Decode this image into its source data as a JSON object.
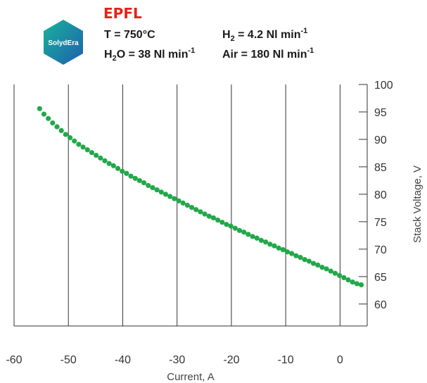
{
  "header": {
    "epfl_logo_text": "EPFL",
    "solydera_logo_text": "SolydEra",
    "conditions": {
      "temperature": "T = 750°C",
      "hydrogen": {
        "prefix": "H",
        "sub": "2",
        "rest": " = 4.2 Nl min",
        "sup": "-1"
      },
      "water": {
        "prefix": "H",
        "sub": "2",
        "rest": "O = 38 Nl min",
        "sup": "-1"
      },
      "air": {
        "prefix": "Air = 180 Nl min",
        "sup": "-1"
      }
    }
  },
  "colors": {
    "points": "#22a84a",
    "epfl_red": "#e2231a",
    "solydera_teal": "#1aa7a0",
    "solydera_blue": "#1f5fae"
  },
  "chart_data": {
    "type": "scatter",
    "title": "",
    "xlabel": "Current, A",
    "ylabel": "Stack Voltage, V",
    "xlim": [
      -60,
      5
    ],
    "ylim": [
      56,
      100
    ],
    "x_ticks": [
      -60,
      -50,
      -40,
      -30,
      -20,
      -10,
      0
    ],
    "y_ticks": [
      60,
      65,
      70,
      75,
      80,
      85,
      90,
      95,
      100
    ],
    "y_axis_side": "right",
    "grid": false,
    "series": [
      {
        "x_start": -55.3,
        "x_step": 0.8,
        "y": [
          95.6,
          94.6,
          93.8,
          93.0,
          92.3,
          91.6,
          90.9,
          90.3,
          89.7,
          89.1,
          88.6,
          88.1,
          87.6,
          87.1,
          86.6,
          86.1,
          85.6,
          85.2,
          84.7,
          84.2,
          83.8,
          83.3,
          82.9,
          82.5,
          82.1,
          81.6,
          81.2,
          80.8,
          80.4,
          80.0,
          79.6,
          79.2,
          78.8,
          78.4,
          78.0,
          77.6,
          77.2,
          76.8,
          76.4,
          76.0,
          75.7,
          75.3,
          74.9,
          74.5,
          74.2,
          73.8,
          73.4,
          73.1,
          72.7,
          72.3,
          72.0,
          71.6,
          71.3,
          70.9,
          70.6,
          70.2,
          69.9,
          69.5,
          69.2,
          68.8,
          68.5,
          68.1,
          67.8,
          67.4,
          67.1,
          66.7,
          66.4,
          66.0,
          65.6,
          65.2,
          64.8,
          64.4,
          64.0,
          63.7,
          63.5
        ]
      }
    ]
  }
}
